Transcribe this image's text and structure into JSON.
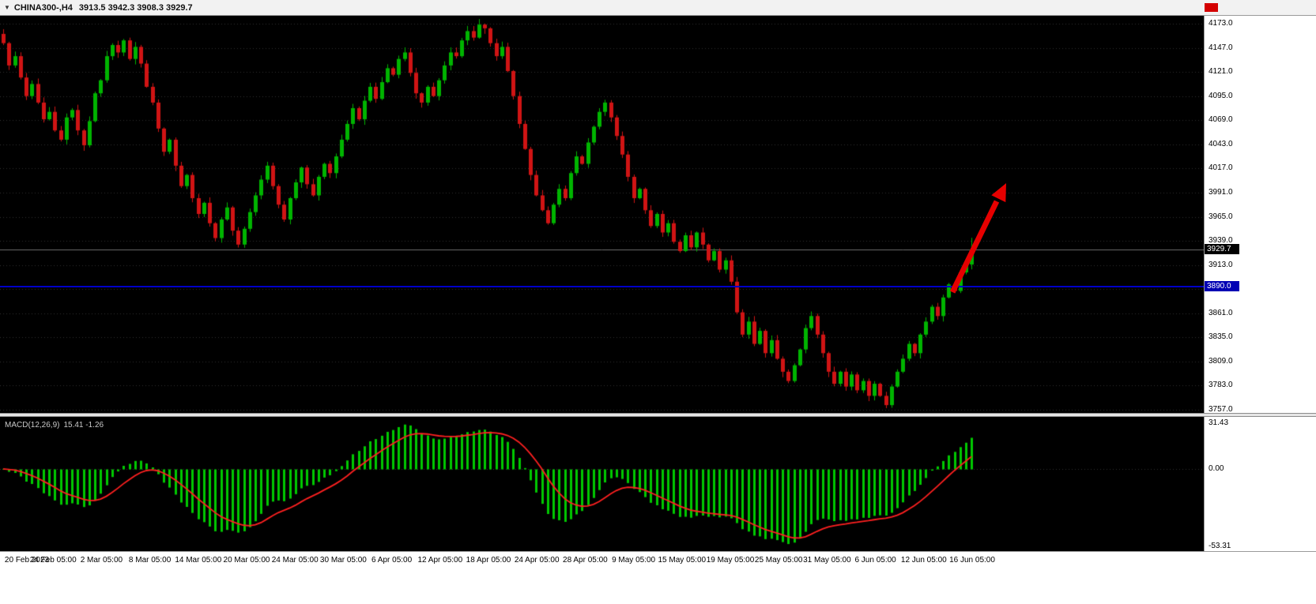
{
  "header": {
    "dropdown_icon": "▼",
    "symbol": "CHINA300-,H4",
    "ohlc": "3913.5 3942.3 3908.3 3929.7"
  },
  "chart_data": {
    "type": "candlestick",
    "symbol": "CHINA300-",
    "timeframe": "H4",
    "last_candle": {
      "open": 3913.5,
      "high": 3942.3,
      "low": 3908.3,
      "close": 3929.7
    },
    "closes": [
      4152,
      4128,
      4138,
      4115,
      4095,
      4108,
      4088,
      4070,
      4078,
      4058,
      4048,
      4072,
      4080,
      4058,
      4042,
      4068,
      4098,
      4112,
      4138,
      4150,
      4142,
      4155,
      4135,
      4148,
      4130,
      4105,
      4088,
      4060,
      4035,
      4048,
      4020,
      3998,
      4010,
      3985,
      3968,
      3980,
      3958,
      3942,
      3962,
      3975,
      3950,
      3935,
      3952,
      3970,
      3988,
      4005,
      4020,
      3998,
      3978,
      3962,
      3985,
      4002,
      4018,
      4000,
      3988,
      4008,
      4022,
      4012,
      4030,
      4048,
      4065,
      4082,
      4070,
      4090,
      4105,
      4092,
      4110,
      4125,
      4118,
      4135,
      4142,
      4120,
      4098,
      4088,
      4105,
      4095,
      4112,
      4128,
      4142,
      4138,
      4155,
      4165,
      4158,
      4172,
      4168,
      4152,
      4138,
      4148,
      4122,
      4095,
      4065,
      4038,
      4010,
      3988,
      3972,
      3958,
      3978,
      3995,
      3985,
      4012,
      4030,
      4022,
      4045,
      4062,
      4078,
      4088,
      4072,
      4052,
      4032,
      4008,
      3985,
      3995,
      3972,
      3955,
      3968,
      3948,
      3958,
      3938,
      3928,
      3945,
      3932,
      3948,
      3935,
      3918,
      3928,
      3908,
      3918,
      3895,
      3862,
      3838,
      3852,
      3828,
      3842,
      3818,
      3832,
      3812,
      3798,
      3788,
      3805,
      3822,
      3845,
      3858,
      3838,
      3818,
      3798,
      3785,
      3798,
      3782,
      3795,
      3778,
      3788,
      3772,
      3785,
      3772,
      3762,
      3782,
      3798,
      3812,
      3828,
      3818,
      3838,
      3852,
      3868,
      3858,
      3878,
      3892,
      3885,
      3905,
      3913.5,
      3929.7
    ],
    "time_labels": [
      "20 Feb 2023",
      "24 Feb 05:00",
      "2 Mar 05:00",
      "8 Mar 05:00",
      "14 Mar 05:00",
      "20 Mar 05:00",
      "24 Mar 05:00",
      "30 Mar 05:00",
      "6 Apr 05:00",
      "12 Apr 05:00",
      "18 Apr 05:00",
      "24 Apr 05:00",
      "28 Apr 05:00",
      "9 May 05:00",
      "15 May 05:00",
      "19 May 05:00",
      "25 May 05:00",
      "31 May 05:00",
      "6 Jun 05:00",
      "12 Jun 05:00",
      "16 Jun 05:00"
    ],
    "price_axis": {
      "min": 3757,
      "max": 4173,
      "grid_step": 26,
      "labels": [
        "4173.0",
        "4147.0",
        "4121.0",
        "4095.0",
        "4069.0",
        "4043.0",
        "4017.0",
        "3991.0",
        "3965.0",
        "3939.0",
        "3913.0",
        "3861.0",
        "3835.0",
        "3809.0",
        "3783.0",
        "3757.0"
      ]
    },
    "horizontal_line": {
      "value": 3890.0,
      "label": "3890.0",
      "color": "#0000C8"
    },
    "bid": {
      "value": 3929.7,
      "label": "3929.7"
    },
    "macd": {
      "label": "MACD(12,26,9)",
      "values_text": "15.41 -1.26",
      "params": [
        12,
        26,
        9
      ],
      "axis_labels": [
        {
          "v": 31.43,
          "t": "31.43"
        },
        {
          "v": 0,
          "t": "0.00"
        },
        {
          "v": -53.31,
          "t": "-53.31"
        }
      ]
    },
    "annotation_arrow": {
      "direction": "up-right",
      "color": "#E60000"
    },
    "colors": {
      "bg": "#000000",
      "grid": "#303030",
      "up": "#00B400",
      "down": "#D01414",
      "hist": "#00C800",
      "signal": "#FF2020",
      "bid_line": "#6e6e6e"
    }
  }
}
